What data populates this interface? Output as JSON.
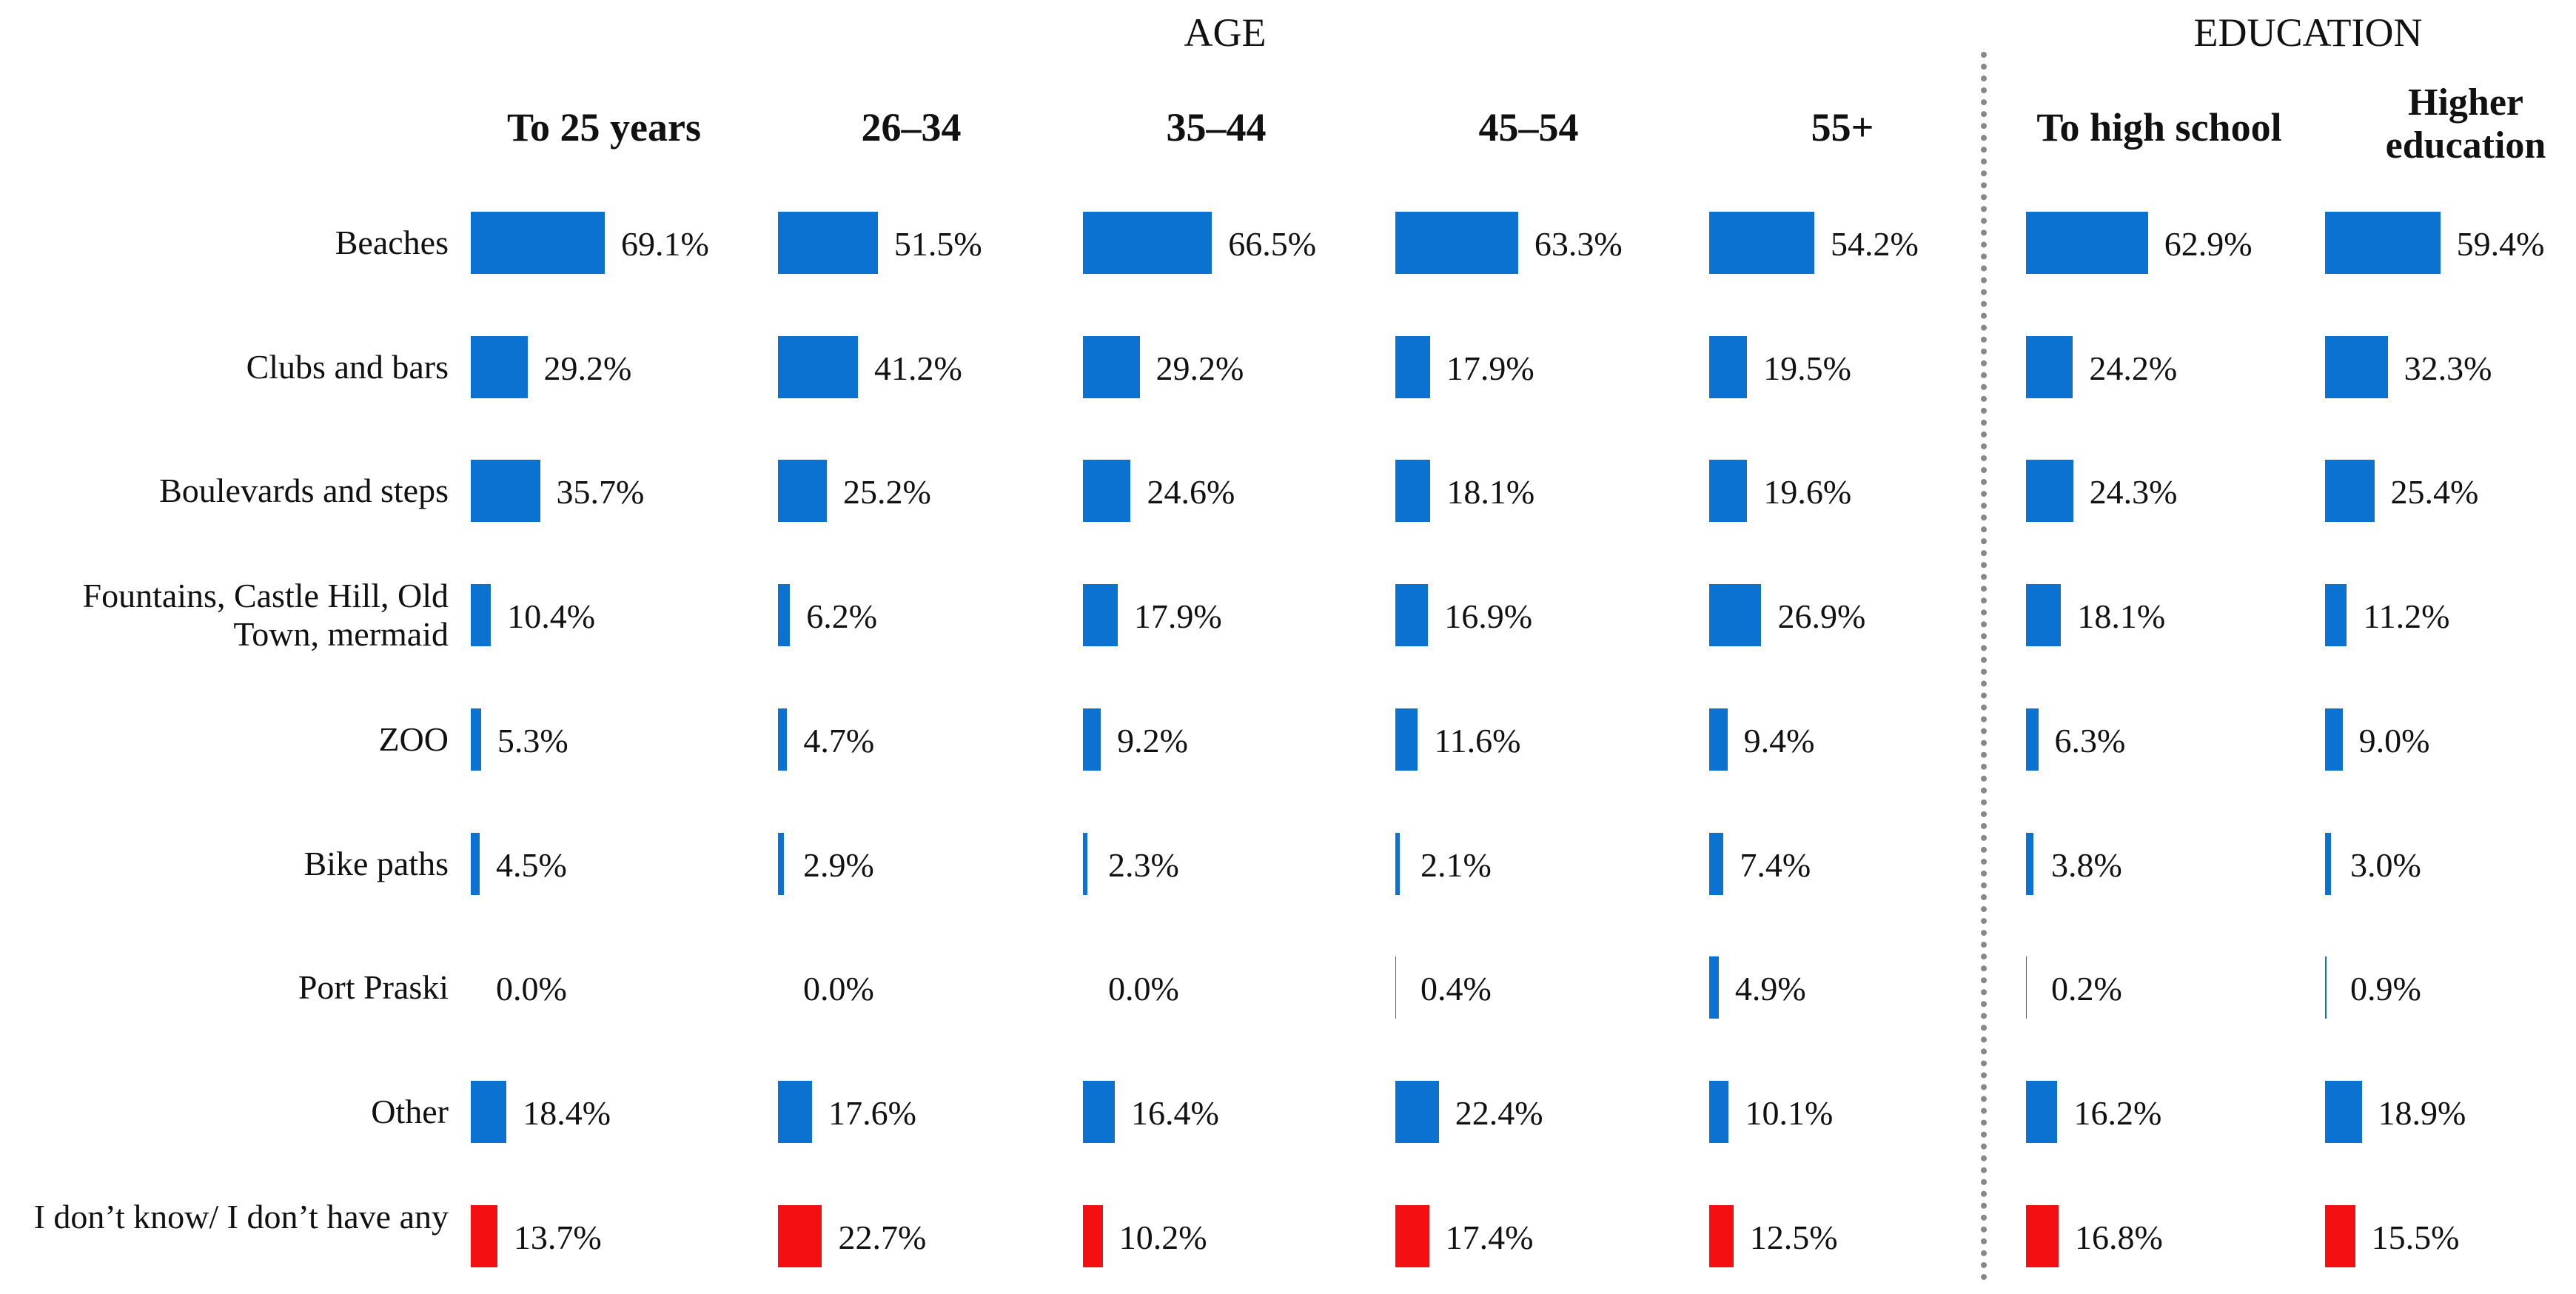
{
  "chart_data": {
    "type": "bar",
    "orientation": "horizontal",
    "categories": [
      "Beaches",
      "Clubs and bars",
      "Boulevards and steps",
      "Fountains, Castle Hill, Old Town, mermaid",
      "ZOO",
      "Bike paths",
      "Port Praski",
      "Other",
      "I don’t know/ I don’t have any"
    ],
    "colors": [
      "#0b72d1",
      "#0b72d1",
      "#0b72d1",
      "#0b72d1",
      "#0b72d1",
      "#0b72d1",
      "#0b72d1",
      "#0b72d1",
      "#f30f12"
    ],
    "groups": [
      {
        "title": "AGE",
        "series": [
          {
            "name": "To 25 years",
            "values": [
              69.1,
              29.2,
              35.7,
              10.4,
              5.3,
              4.5,
              0.0,
              18.4,
              13.7
            ],
            "value_labels": [
              "69.1%",
              "29.2%",
              "35.7%",
              "10.4%",
              "5.3%",
              "4.5%",
              "0.0%",
              "18.4%",
              "13.7%"
            ]
          },
          {
            "name": "26–34",
            "values": [
              51.5,
              41.2,
              25.2,
              6.2,
              4.7,
              2.9,
              0.0,
              17.6,
              22.7
            ],
            "value_labels": [
              "51.5%",
              "41.2%",
              "25.2%",
              "6.2%",
              "4.7%",
              "2.9%",
              "0.0%",
              "17.6%",
              "22.7%"
            ]
          },
          {
            "name": "35–44",
            "values": [
              66.5,
              29.2,
              24.6,
              17.9,
              9.2,
              2.3,
              0.0,
              16.4,
              10.2
            ],
            "value_labels": [
              "66.5%",
              "29.2%",
              "24.6%",
              "17.9%",
              "9.2%",
              "2.3%",
              "0.0%",
              "16.4%",
              "10.2%"
            ]
          },
          {
            "name": "45–54",
            "values": [
              63.3,
              17.9,
              18.1,
              16.9,
              11.6,
              2.1,
              0.4,
              22.4,
              17.4
            ],
            "value_labels": [
              "63.3%",
              "17.9%",
              "18.1%",
              "16.9%",
              "11.6%",
              "2.1%",
              "0.4%",
              "22.4%",
              "17.4%"
            ]
          },
          {
            "name": "55+",
            "values": [
              54.2,
              19.5,
              19.6,
              26.9,
              9.4,
              7.4,
              4.9,
              10.1,
              12.5
            ],
            "value_labels": [
              "54.2%",
              "19.5%",
              "19.6%",
              "26.9%",
              "9.4%",
              "7.4%",
              "4.9%",
              "10.1%",
              "12.5%"
            ]
          }
        ]
      },
      {
        "title": "EDUCATION",
        "series": [
          {
            "name": "To high school",
            "values": [
              62.9,
              24.2,
              24.3,
              18.1,
              6.3,
              3.8,
              0.2,
              16.2,
              16.8
            ],
            "value_labels": [
              "62.9%",
              "24.2%",
              "24.3%",
              "18.1%",
              "6.3%",
              "3.8%",
              "0.2%",
              "16.2%",
              "16.8%"
            ]
          },
          {
            "name": "Higher education",
            "values": [
              59.4,
              32.3,
              25.4,
              11.2,
              9.0,
              3.0,
              0.9,
              18.9,
              15.5
            ],
            "value_labels": [
              "59.4%",
              "32.3%",
              "25.4%",
              "11.2%",
              "9.0%",
              "3.0%",
              "0.9%",
              "18.9%",
              "15.5%"
            ]
          }
        ]
      }
    ]
  }
}
